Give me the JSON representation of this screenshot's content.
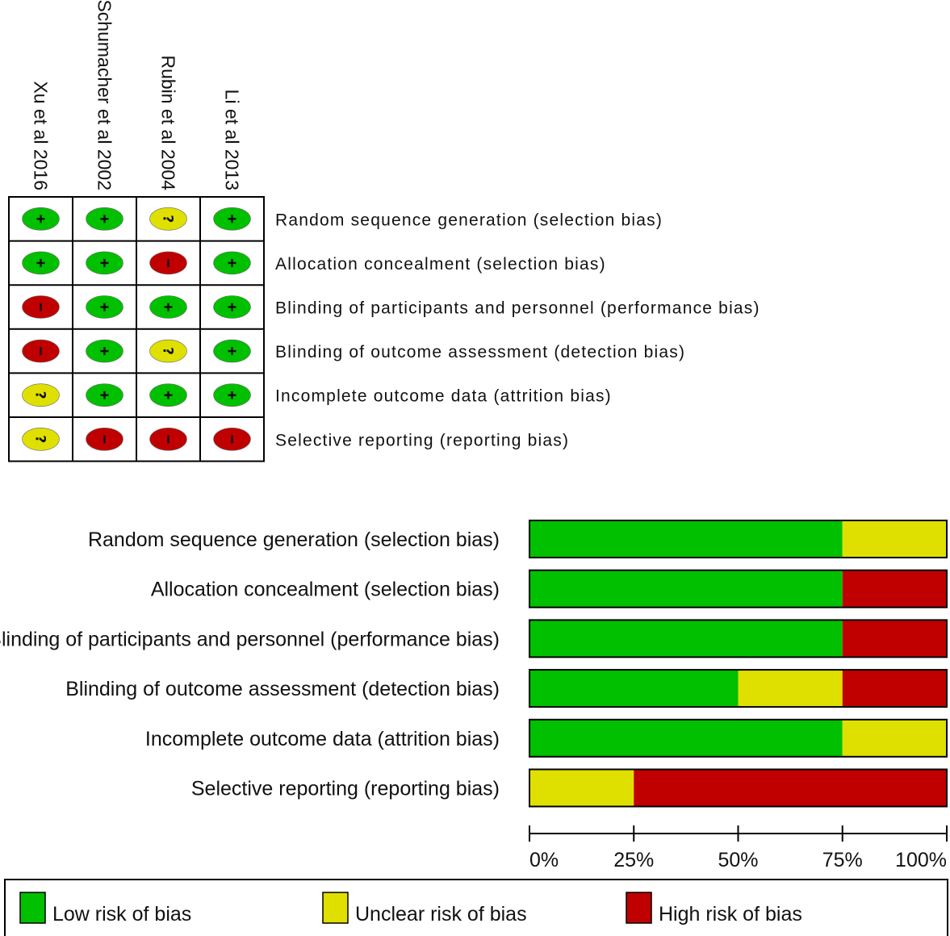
{
  "chart_data": [
    {
      "type": "table",
      "studies": [
        "Xu et al 2016",
        "Schumacher et al 2002",
        "Rubin et al 2004",
        "Li et al 2013"
      ],
      "domains": [
        "Random sequence generation (selection bias)",
        "Allocation concealment (selection bias)",
        "Blinding of participants and personnel (performance bias)",
        "Blinding of outcome assessment (detection bias)",
        "Incomplete outcome data (attrition bias)",
        "Selective reporting (reporting bias)"
      ],
      "judgements": [
        [
          "low",
          "low",
          "unclear",
          "low"
        ],
        [
          "low",
          "low",
          "high",
          "low"
        ],
        [
          "high",
          "low",
          "low",
          "low"
        ],
        [
          "high",
          "low",
          "unclear",
          "low"
        ],
        [
          "unclear",
          "low",
          "low",
          "low"
        ],
        [
          "unclear",
          "high",
          "high",
          "high"
        ]
      ],
      "symbols": {
        "low": "+",
        "unclear": "?",
        "high": "-"
      }
    },
    {
      "type": "bar",
      "stacked": true,
      "orientation": "horizontal",
      "categories": [
        "Random sequence generation (selection bias)",
        "Allocation concealment (selection bias)",
        "Blinding of participants and personnel (performance bias)",
        "Blinding of outcome assessment (detection bias)",
        "Incomplete outcome data (attrition bias)",
        "Selective reporting (reporting bias)"
      ],
      "series": [
        {
          "name": "Low risk of bias",
          "color": "#00c000",
          "values": [
            75,
            75,
            75,
            50,
            75,
            0
          ]
        },
        {
          "name": "Unclear risk of bias",
          "color": "#e0e000",
          "values": [
            25,
            0,
            0,
            25,
            25,
            25
          ]
        },
        {
          "name": "High risk of bias",
          "color": "#c00000",
          "values": [
            0,
            25,
            25,
            25,
            0,
            75
          ]
        }
      ],
      "xlim": [
        0,
        100
      ],
      "xticks": [
        "0%",
        "25%",
        "50%",
        "75%",
        "100%"
      ],
      "legend_position": "bottom"
    }
  ],
  "colors": {
    "low": "#00c000",
    "unclear": "#e0e000",
    "high": "#c00000"
  }
}
